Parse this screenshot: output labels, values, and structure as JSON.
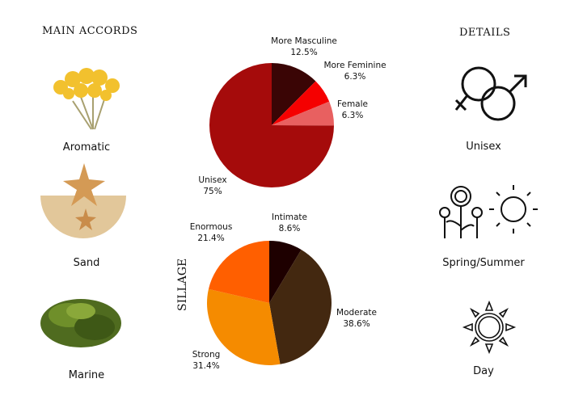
{
  "headings": {
    "main_accords": "MAIN ACCORDS",
    "details": "DETAILS",
    "sillage": "SILLAGE"
  },
  "accords": [
    {
      "label": "Aromatic",
      "icon": "helichrysum-flower-image"
    },
    {
      "label": "Sand",
      "icon": "sand-starfish-image"
    },
    {
      "label": "Marine",
      "icon": "seaweed-image"
    }
  ],
  "details": [
    {
      "label": "Unisex",
      "icon": "gender-symbols-icon"
    },
    {
      "label": "Spring/Summer",
      "icon": "flowers-sun-icon"
    },
    {
      "label": "Day",
      "icon": "sun-icon"
    }
  ],
  "chart_data": [
    {
      "type": "pie",
      "title": "",
      "categories": [
        "More Masculine",
        "More Feminine",
        "Female",
        "Unisex"
      ],
      "values": [
        12.5,
        6.3,
        6.3,
        75
      ],
      "value_labels": [
        "12.5%",
        "6.3%",
        "6.3%",
        "75%"
      ],
      "colors": [
        "#3a0505",
        "#f50000",
        "#e86060",
        "#a50b0b"
      ]
    },
    {
      "type": "pie",
      "title": "SILLAGE",
      "categories": [
        "Intimate",
        "Moderate",
        "Strong",
        "Enormous"
      ],
      "values": [
        8.6,
        38.6,
        31.4,
        21.4
      ],
      "value_labels": [
        "8.6%",
        "38.6%",
        "31.4%",
        "21.4%"
      ],
      "colors": [
        "#1e0000",
        "#432810",
        "#f58b00",
        "#ff5f00"
      ]
    }
  ]
}
